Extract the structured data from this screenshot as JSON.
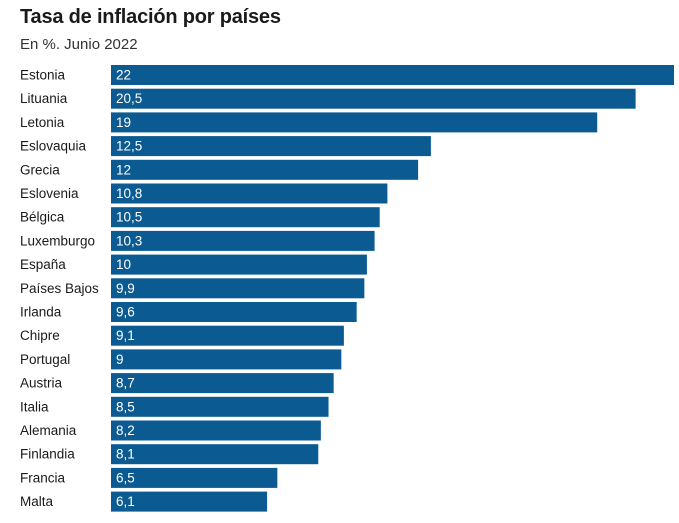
{
  "chart_data": {
    "type": "bar",
    "orientation": "horizontal",
    "title": "Tasa de inflación por países",
    "subtitle": "En %. Junio 2022",
    "xlabel": "",
    "ylabel": "",
    "xlim": [
      0,
      22
    ],
    "grid": false,
    "legend": "none",
    "bar_color": "#0b5a91",
    "categories": [
      "Estonia",
      "Lituania",
      "Letonia",
      "Eslovaquia",
      "Grecia",
      "Eslovenia",
      "Bélgica",
      "Luxemburgo",
      "España",
      "Países Bajos",
      "Irlanda",
      "Chipre",
      "Portugal",
      "Austria",
      "Italia",
      "Alemania",
      "Finlandia",
      "Francia",
      "Malta"
    ],
    "values": [
      22,
      20.5,
      19,
      12.5,
      12,
      10.8,
      10.5,
      10.3,
      10,
      9.9,
      9.6,
      9.1,
      9,
      8.7,
      8.5,
      8.2,
      8.1,
      6.5,
      6.1
    ],
    "value_labels": [
      "22",
      "20,5",
      "19",
      "12,5",
      "12",
      "10,8",
      "10,5",
      "10,3",
      "10",
      "9,9",
      "9,6",
      "9,1",
      "9",
      "8,7",
      "8,5",
      "8,2",
      "8,1",
      "6,5",
      "6,1"
    ]
  }
}
